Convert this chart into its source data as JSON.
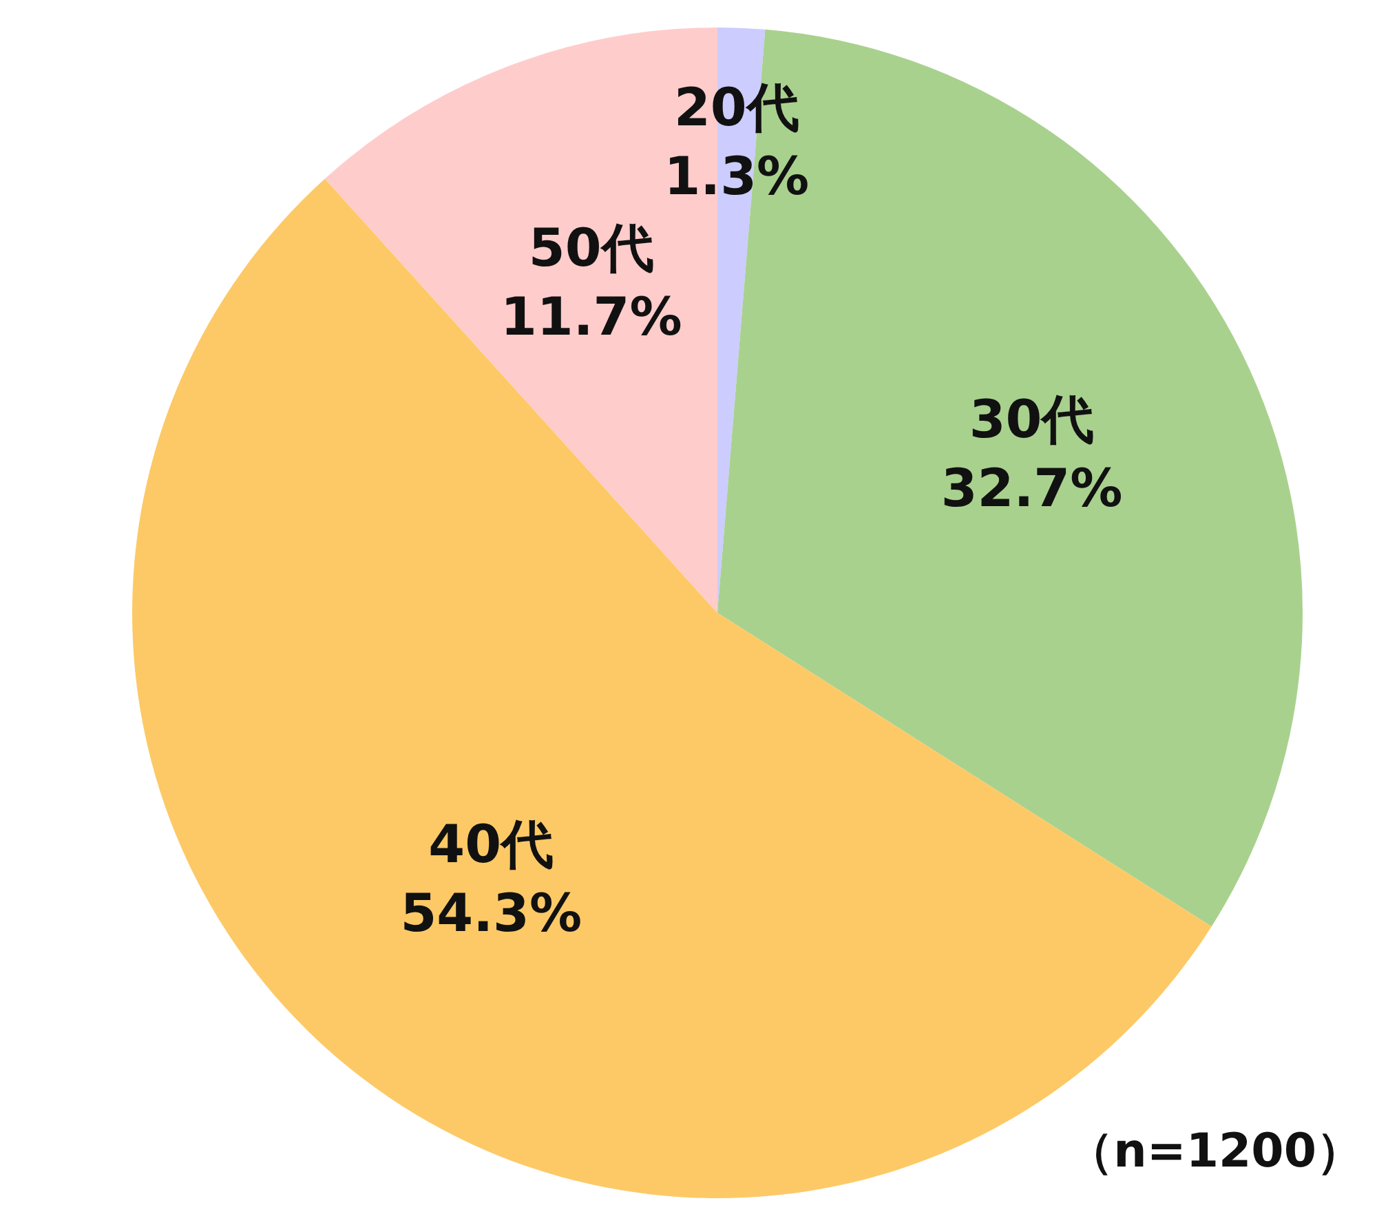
{
  "chart_data": {
    "type": "pie",
    "categories": [
      "20代",
      "30代",
      "40代",
      "50代"
    ],
    "values": [
      1.3,
      32.7,
      54.3,
      11.7
    ],
    "colors": [
      "#ccccff",
      "#a9d18e",
      "#fdc966",
      "#ffcccc"
    ],
    "value_labels": [
      "1.3%",
      "32.7%",
      "54.3%",
      "11.7%"
    ],
    "legend": false,
    "annotations": [
      "（n=1200）"
    ]
  }
}
